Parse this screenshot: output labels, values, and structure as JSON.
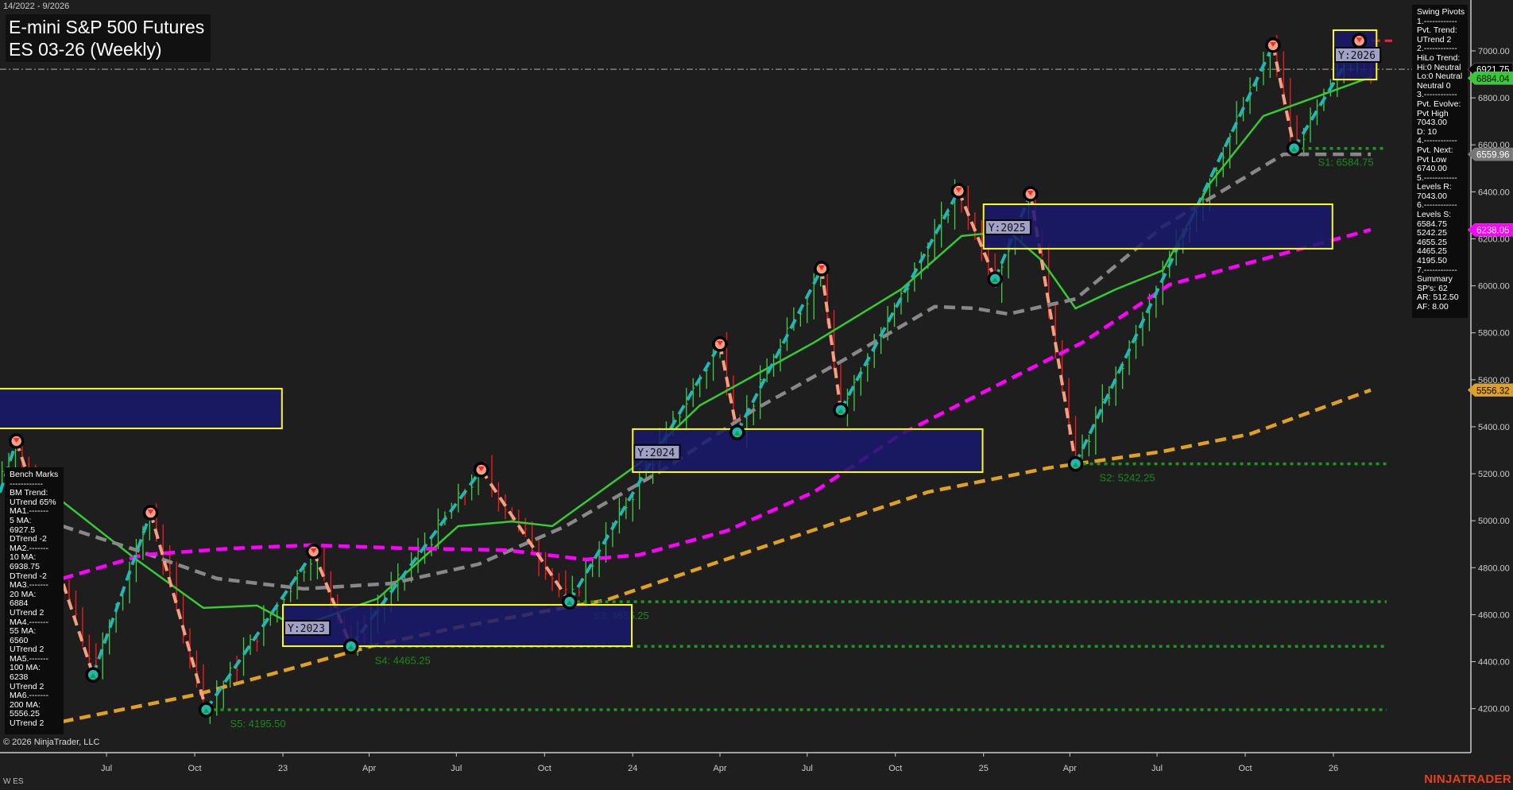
{
  "header": {
    "date_range": "14/2022 - 9/2026",
    "title": "E-mini S&P 500 Futures",
    "subtitle": "ES 03-26 (Weekly)"
  },
  "swing_pivots_panel": {
    "lines": [
      "Swing Pivots",
      "1.------------",
      "Pvt. Trend:",
      "UTrend 2",
      "2.------------",
      "HiLo Trend:",
      "Hi:0 Neutral",
      "Lo:0 Neutral",
      "Neutral 0",
      "3.------------",
      "Pvt. Evolve:",
      "Pvt High",
      "7043.00",
      "D: 10",
      "4.------------",
      "Pvt. Next:",
      "Pvt Low",
      "6740.00",
      "5.------------",
      "Levels R:",
      "7043.00",
      "6.------------",
      "Levels S:",
      "6584.75",
      "5242.25",
      "4655.25",
      "4465.25",
      "4195.50",
      "7.------------",
      "Summary",
      "SP's: 62",
      "AR: 512.50",
      "AF: 8.00"
    ]
  },
  "bench_marks_panel": {
    "lines": [
      "Bench Marks",
      "------------",
      "BM Trend:",
      "UTrend 65%",
      "MA1.-------",
      "5 MA:",
      "6927.5",
      "DTrend -2",
      "MA2.-------",
      "10 MA:",
      "6938.75",
      "DTrend -2",
      "MA3.-------",
      "20 MA:",
      "6884",
      "UTrend 2",
      "MA4.-------",
      "55 MA:",
      "6560",
      "UTrend 2",
      "MA5.-------",
      "100 MA:",
      "6238",
      "UTrend 2",
      "MA6.-------",
      "200 MA:",
      "5556.25",
      "UTrend 2"
    ]
  },
  "footer": {
    "copyright": "© 2026 NinjaTrader, LLC",
    "instrument_tag": "W ES",
    "brand": "NINJATRADER"
  },
  "chart_data": {
    "type": "line",
    "title": "E-mini S&P 500 Futures ES 03-26 (Weekly)",
    "x_type": "date",
    "xlim": [
      "2022-03-07",
      "2026-03-20"
    ],
    "ylim": [
      4050,
      7150
    ],
    "x_tick_labels": [
      {
        "date": "2022-07-01",
        "label": "Jul"
      },
      {
        "date": "2022-10-01",
        "label": "Oct"
      },
      {
        "date": "2023-01-01",
        "label": "23"
      },
      {
        "date": "2023-04-01",
        "label": "Apr"
      },
      {
        "date": "2023-07-01",
        "label": "Jul"
      },
      {
        "date": "2023-10-01",
        "label": "Oct"
      },
      {
        "date": "2024-01-01",
        "label": "24"
      },
      {
        "date": "2024-04-01",
        "label": "Apr"
      },
      {
        "date": "2024-07-01",
        "label": "Jul"
      },
      {
        "date": "2024-10-01",
        "label": "Oct"
      },
      {
        "date": "2025-01-01",
        "label": "25"
      },
      {
        "date": "2025-04-01",
        "label": "Apr"
      },
      {
        "date": "2025-07-01",
        "label": "Jul"
      },
      {
        "date": "2025-10-01",
        "label": "Oct"
      },
      {
        "date": "2026-01-01",
        "label": "26"
      }
    ],
    "y_ticks": [
      4200,
      4400,
      4600,
      4800,
      5000,
      5200,
      5400,
      5600,
      5800,
      6000,
      6200,
      6400,
      6600,
      6800,
      7000
    ],
    "grid": false,
    "last_price": 6921.75,
    "price_tags": [
      {
        "value": "6921.75",
        "color": "#000000",
        "text_color": "#ffffff"
      },
      {
        "value": "6884.04",
        "color": "#33cc33",
        "text_color": "#000000"
      },
      {
        "value": "6559.96",
        "color": "#777777",
        "text_color": "#ffffff"
      },
      {
        "value": "6238.05",
        "color": "#ff00ff",
        "text_color": "#ffffff"
      },
      {
        "value": "5556.32",
        "color": "#e0a020",
        "text_color": "#000000"
      }
    ],
    "swing_pivots": [
      {
        "date": "2022-03-29",
        "price": 5339,
        "type": "high"
      },
      {
        "date": "2022-06-17",
        "price": 4344,
        "type": "low"
      },
      {
        "date": "2022-08-16",
        "price": 5034,
        "type": "high"
      },
      {
        "date": "2022-10-13",
        "price": 4195.5,
        "type": "low"
      },
      {
        "date": "2023-02-02",
        "price": 4869,
        "type": "high"
      },
      {
        "date": "2023-03-13",
        "price": 4465.25,
        "type": "low"
      },
      {
        "date": "2023-07-27",
        "price": 5217,
        "type": "high"
      },
      {
        "date": "2023-10-27",
        "price": 4655.25,
        "type": "low"
      },
      {
        "date": "2024-04-01",
        "price": 5752,
        "type": "high"
      },
      {
        "date": "2024-04-19",
        "price": 5376,
        "type": "low"
      },
      {
        "date": "2024-07-16",
        "price": 6073,
        "type": "high"
      },
      {
        "date": "2024-08-05",
        "price": 5471,
        "type": "low"
      },
      {
        "date": "2024-12-06",
        "price": 6404,
        "type": "high"
      },
      {
        "date": "2025-01-13",
        "price": 6029,
        "type": "low"
      },
      {
        "date": "2025-02-19",
        "price": 6391,
        "type": "high"
      },
      {
        "date": "2025-04-07",
        "price": 5242.25,
        "type": "low"
      },
      {
        "date": "2025-10-30",
        "price": 7024,
        "type": "high"
      },
      {
        "date": "2025-11-21",
        "price": 6584.75,
        "type": "low"
      },
      {
        "date": "2026-01-28",
        "price": 7043,
        "type": "high"
      }
    ],
    "last_bar_date": "2026-02-09",
    "series": [
      {
        "name": "20 MA",
        "color": "#33cc33",
        "style": "solid",
        "points": [
          [
            "2022-05-16",
            5082
          ],
          [
            "2022-08-01",
            4835
          ],
          [
            "2022-10-10",
            4629
          ],
          [
            "2022-12-05",
            4639
          ],
          [
            "2023-01-16",
            4547
          ],
          [
            "2023-04-10",
            4669
          ],
          [
            "2023-07-03",
            4977
          ],
          [
            "2023-08-28",
            4997
          ],
          [
            "2023-10-09",
            4977
          ],
          [
            "2024-01-08",
            5245
          ],
          [
            "2024-03-11",
            5491
          ],
          [
            "2024-07-08",
            5758
          ],
          [
            "2024-10-07",
            5985
          ],
          [
            "2024-12-09",
            6212
          ],
          [
            "2025-01-27",
            6232
          ],
          [
            "2025-03-03",
            6107
          ],
          [
            "2025-04-07",
            5904
          ],
          [
            "2025-05-19",
            5985
          ],
          [
            "2025-07-07",
            6066
          ],
          [
            "2025-08-25",
            6435
          ],
          [
            "2025-10-20",
            6723
          ],
          [
            "2026-02-09",
            6888
          ]
        ]
      },
      {
        "name": "55 MA",
        "color": "#888888",
        "style": "dashed",
        "points": [
          [
            "2022-05-16",
            4977
          ],
          [
            "2022-08-01",
            4875
          ],
          [
            "2022-10-24",
            4754
          ],
          [
            "2023-01-23",
            4710
          ],
          [
            "2023-04-24",
            4733
          ],
          [
            "2023-07-24",
            4815
          ],
          [
            "2023-10-23",
            4977
          ],
          [
            "2024-02-05",
            5225
          ],
          [
            "2024-05-06",
            5471
          ],
          [
            "2024-08-05",
            5677
          ],
          [
            "2024-11-11",
            5911
          ],
          [
            "2024-12-23",
            5904
          ],
          [
            "2025-01-27",
            5880
          ],
          [
            "2025-04-07",
            5944
          ],
          [
            "2025-07-07",
            6252
          ],
          [
            "2025-11-10",
            6560
          ],
          [
            "2026-02-09",
            6560
          ]
        ]
      },
      {
        "name": "100 MA",
        "color": "#ff00ff",
        "style": "dashed",
        "points": [
          [
            "2022-05-16",
            4754
          ],
          [
            "2022-08-08",
            4855
          ],
          [
            "2022-11-07",
            4882
          ],
          [
            "2023-01-30",
            4896
          ],
          [
            "2023-05-15",
            4882
          ],
          [
            "2023-08-21",
            4875
          ],
          [
            "2023-11-13",
            4835
          ],
          [
            "2024-01-08",
            4855
          ],
          [
            "2024-04-08",
            4957
          ],
          [
            "2024-07-08",
            5122
          ],
          [
            "2024-10-07",
            5369
          ],
          [
            "2025-01-13",
            5572
          ],
          [
            "2025-04-14",
            5758
          ],
          [
            "2025-07-14",
            6005
          ],
          [
            "2026-02-09",
            6239
          ]
        ]
      },
      {
        "name": "200 MA",
        "color": "#e0a020",
        "style": "dashed",
        "points": [
          [
            "2022-05-16",
            4145
          ],
          [
            "2022-10-03",
            4260
          ],
          [
            "2023-01-02",
            4362
          ],
          [
            "2023-04-03",
            4466
          ],
          [
            "2023-07-03",
            4547
          ],
          [
            "2023-12-04",
            4662
          ],
          [
            "2024-05-06",
            4875
          ],
          [
            "2024-11-04",
            5122
          ],
          [
            "2025-03-10",
            5225
          ],
          [
            "2025-07-07",
            5295
          ],
          [
            "2025-10-06",
            5369
          ],
          [
            "2026-02-09",
            5556
          ]
        ]
      }
    ],
    "yearly_zones": [
      {
        "label": "",
        "start": "2022-03-01",
        "end": "2022-12-31",
        "high": 5562,
        "low": 5393
      },
      {
        "label": "Y:2023",
        "start": "2023-01-01",
        "end": "2023-12-31",
        "high": 4642,
        "low": 4466
      },
      {
        "label": "Y:2024",
        "start": "2024-01-01",
        "end": "2024-12-31",
        "high": 5390,
        "low": 5207
      },
      {
        "label": "Y:2025",
        "start": "2025-01-01",
        "end": "2025-12-31",
        "high": 6347,
        "low": 6158
      },
      {
        "label": "Y:2026",
        "start": "2026-01-01",
        "end": "2026-02-15",
        "high": 7088,
        "low": 6878
      }
    ],
    "support_levels": [
      {
        "label": "S1: 6584.75",
        "value": 6584.75,
        "from": "2025-11-21"
      },
      {
        "label": "S2: 5242.25",
        "value": 5242.25,
        "from": "2025-04-07"
      },
      {
        "label": "S3: 4655.25",
        "value": 4655.25,
        "from": "2023-10-27"
      },
      {
        "label": "S4: 4465.25",
        "value": 4465.25,
        "from": "2023-03-13"
      },
      {
        "label": "S5: 4195.50",
        "value": 4195.5,
        "from": "2022-10-13"
      }
    ],
    "resistance_levels": [
      {
        "value": 7043,
        "from": "2026-01-28"
      }
    ]
  }
}
